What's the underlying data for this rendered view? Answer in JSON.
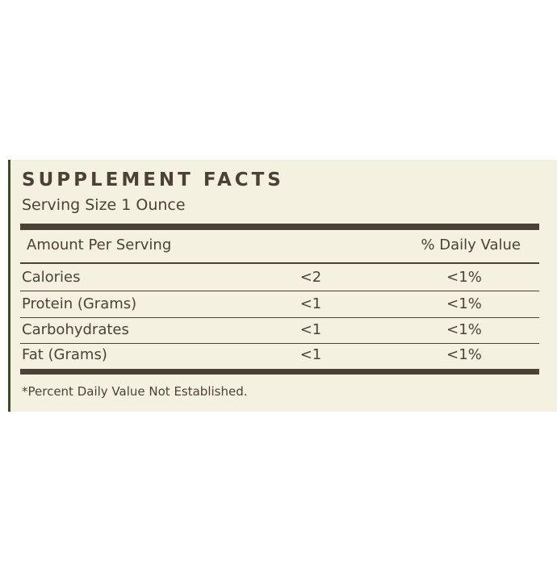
{
  "header": {
    "title": "SUPPLEMENT FACTS",
    "serving_size": "Serving Size 1 Ounce"
  },
  "table": {
    "columns": [
      "Amount Per Serving",
      "% Daily Value"
    ],
    "rows": [
      [
        "Calories",
        "<2",
        "<1%"
      ],
      [
        "Protein (Grams)",
        "<1",
        "<1%"
      ],
      [
        "Carbohydrates",
        "<1",
        "<1%"
      ],
      [
        "Fat (Grams)",
        "<1",
        "<1%"
      ]
    ]
  },
  "footnote": "*Percent Daily Value Not Established."
}
